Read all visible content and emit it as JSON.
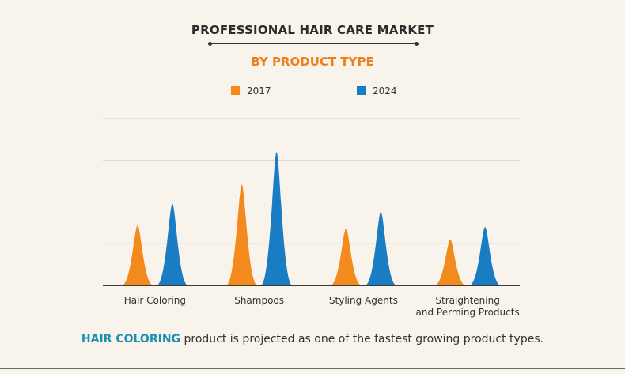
{
  "header": {
    "title": "PROFESSIONAL HAIR CARE MARKET",
    "subtitle": "BY PRODUCT TYPE"
  },
  "legend": [
    {
      "label": "2017",
      "color": "#f38a1e"
    },
    {
      "label": "2024",
      "color": "#1a7dc4"
    }
  ],
  "footer": {
    "highlight": "HAIR COLORING",
    "text": " product is projected as one of the fastest growing product types."
  },
  "chart_data": {
    "type": "area",
    "categories": [
      "Hair Coloring",
      "Shampoos",
      "Styling Agents",
      "Straightening and Perming Products"
    ],
    "category_lines": [
      [
        "Hair Coloring"
      ],
      [
        "Shampoos"
      ],
      [
        "Styling Agents"
      ],
      [
        "Straightening",
        "and Perming Products"
      ]
    ],
    "series": [
      {
        "name": "2017",
        "values": [
          1.44,
          2.42,
          1.36,
          1.1
        ]
      },
      {
        "name": "2024",
        "values": [
          1.96,
          3.2,
          1.76,
          1.4
        ]
      }
    ],
    "ylim": [
      0,
      4
    ],
    "grid": true,
    "legend_position": "top-center"
  }
}
